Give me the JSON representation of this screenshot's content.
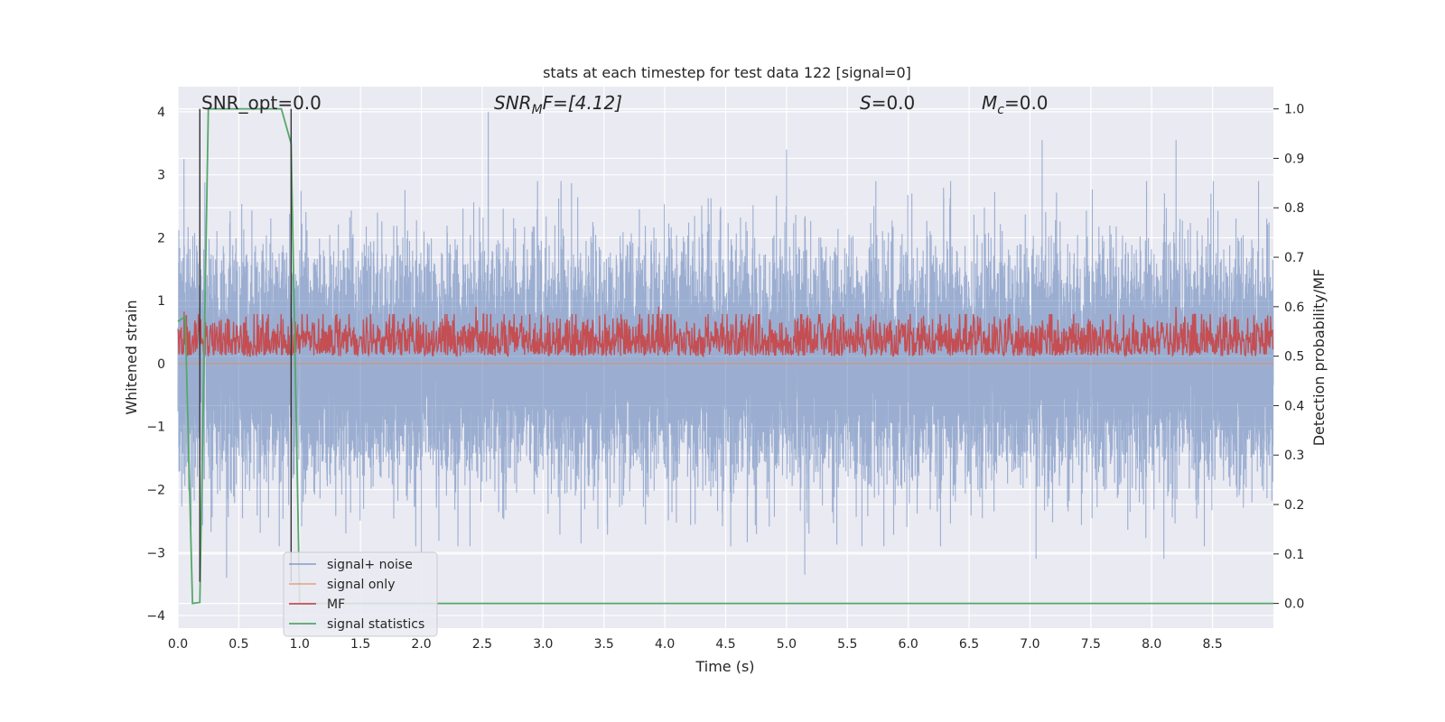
{
  "chart_data": {
    "type": "line",
    "title": "stats at each timestep for test data 122 [signal=0]",
    "xlabel": "Time (s)",
    "ylabel_left": "Whitened strain",
    "ylabel_right": "Detection probability/MF",
    "xlim": [
      0,
      9.0
    ],
    "ylim_left": [
      -4.2,
      4.4
    ],
    "ylim_right": [
      -0.05,
      1.045
    ],
    "x_ticks": [
      0.0,
      0.5,
      1.0,
      1.5,
      2.0,
      2.5,
      3.0,
      3.5,
      4.0,
      4.5,
      5.0,
      5.5,
      6.0,
      6.5,
      7.0,
      7.5,
      8.0,
      8.5
    ],
    "x_tick_labels": [
      "0.0",
      "0.5",
      "1.0",
      "1.5",
      "2.0",
      "2.5",
      "3.0",
      "3.5",
      "4.0",
      "4.5",
      "5.0",
      "5.5",
      "6.0",
      "6.5",
      "7.0",
      "7.5",
      "8.0",
      "8.5"
    ],
    "y_left_ticks": [
      4,
      3,
      2,
      1,
      0,
      -1,
      -2,
      -3,
      -4
    ],
    "y_left_tick_labels": [
      "4",
      "3",
      "2",
      "1",
      "0",
      "−1",
      "−2",
      "−3",
      "−4"
    ],
    "y_right_ticks": [
      1.0,
      0.9,
      0.8,
      0.7,
      0.6,
      0.5,
      0.4,
      0.3,
      0.2,
      0.1,
      0.0
    ],
    "y_right_tick_labels": [
      "1.0",
      "0.9",
      "0.8",
      "0.7",
      "0.6",
      "0.5",
      "0.4",
      "0.3",
      "0.2",
      "0.1",
      "0.0"
    ],
    "grid": true,
    "legend_position": "lower-left",
    "annotations": {
      "snr_opt": "SNR_opt=0.0",
      "snr_mf_base": "SNR",
      "snr_mf_sub": "M",
      "snr_mf_rest": "F=[4.12]",
      "s_base": "S",
      "s_rest": "=0.0",
      "mc_base": "M",
      "mc_sub": "c",
      "mc_rest": "=0.0"
    },
    "series": [
      {
        "name": "signal+ noise",
        "axis": "left",
        "color": "#4c72b0",
        "sample_rate": 2048,
        "duration": 9.0,
        "amplitude_sd": 0.85,
        "peaks": [
          [
            0.05,
            3.25
          ],
          [
            0.4,
            -3.4
          ],
          [
            2.55,
            4.0
          ],
          [
            5.0,
            3.4
          ],
          [
            5.15,
            -3.35
          ],
          [
            7.1,
            3.55
          ],
          [
            8.2,
            3.55
          ],
          [
            7.05,
            -3.1
          ],
          [
            8.1,
            -3.1
          ],
          [
            2.0,
            -3.0
          ],
          [
            5.8,
            -2.9
          ]
        ]
      },
      {
        "name": "signal only",
        "axis": "left",
        "color": "#dd8452",
        "constant": 0.0
      },
      {
        "name": "MF",
        "axis": "right",
        "color": "#c44e52",
        "sample_rate": 256,
        "duration": 9.0,
        "baseline": 0.53,
        "spread": 0.03,
        "peaks": [
          [
            0.05,
            0.59
          ],
          [
            2.45,
            0.6
          ],
          [
            3.95,
            0.6
          ],
          [
            8.2,
            0.6
          ]
        ]
      },
      {
        "name": "signal statistics",
        "axis": "right",
        "color": "#55a868",
        "x": [
          0.0,
          0.06,
          0.12,
          0.18,
          0.25,
          0.3,
          0.85,
          0.93,
          1.0,
          1.05,
          9.0
        ],
        "y": [
          0.57,
          0.58,
          0.0,
          0.002,
          1.0,
          1.0,
          1.0,
          0.93,
          0.0,
          0.0,
          0.0
        ]
      }
    ],
    "vertical_markers_x": [
      0.18,
      0.93
    ]
  }
}
